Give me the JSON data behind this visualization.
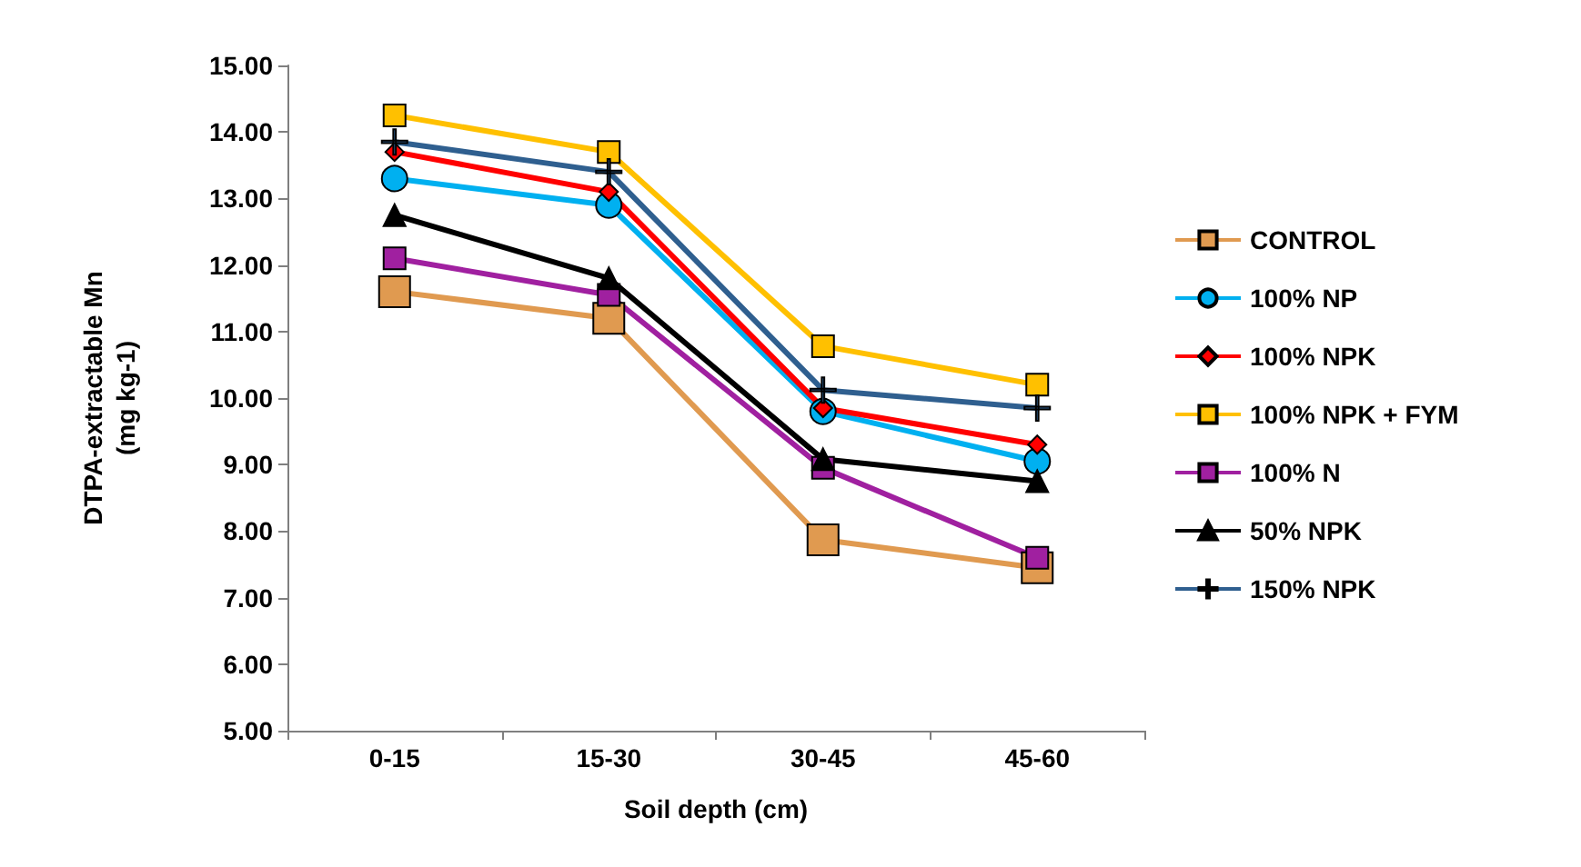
{
  "chart_data": {
    "type": "line",
    "xlabel": "Soil depth (cm)",
    "ylabel": "DTPA-extractable Mn\n(mg kg-1)",
    "categories": [
      "0-15",
      "15-30",
      "30-45",
      "45-60"
    ],
    "ylim": [
      5,
      15
    ],
    "yticks": [
      {
        "value": 5,
        "label": "5.00"
      },
      {
        "value": 6,
        "label": "6.00"
      },
      {
        "value": 7,
        "label": "7.00"
      },
      {
        "value": 8,
        "label": "8.00"
      },
      {
        "value": 9,
        "label": "9.00"
      },
      {
        "value": 10,
        "label": "10.00"
      },
      {
        "value": 11,
        "label": "11.00"
      },
      {
        "value": 12,
        "label": "12.00"
      },
      {
        "value": 13,
        "label": "13.00"
      },
      {
        "value": 14,
        "label": "14.00"
      },
      {
        "value": 15,
        "label": "15.00"
      }
    ],
    "grid": false,
    "legend": "right",
    "line_style": "solid",
    "series": [
      {
        "name": "CONTROL",
        "color": "#e09a50",
        "marker": "square",
        "values": [
          11.6,
          11.2,
          7.87,
          7.45
        ]
      },
      {
        "name": "100% NP",
        "color": "#00b0f0",
        "marker": "circle",
        "values": [
          13.3,
          12.9,
          9.8,
          9.05
        ]
      },
      {
        "name": "100% NPK",
        "color": "#ff0000",
        "marker": "diamond",
        "values": [
          13.7,
          13.1,
          9.85,
          9.3
        ]
      },
      {
        "name": "100% NPK + FYM",
        "color": "#ffc000",
        "marker": "square",
        "values": [
          14.25,
          13.7,
          10.78,
          10.2
        ]
      },
      {
        "name": "100% N",
        "color": "#a020a0",
        "marker": "square",
        "values": [
          12.1,
          11.55,
          8.95,
          7.6
        ]
      },
      {
        "name": "50% NPK",
        "color": "#000000",
        "marker": "triangle",
        "values": [
          12.75,
          11.8,
          9.08,
          8.75
        ]
      },
      {
        "name": "150% NPK",
        "color": "#2f5f8f",
        "marker": "cross",
        "values": [
          13.85,
          13.4,
          10.12,
          9.85
        ]
      }
    ]
  }
}
